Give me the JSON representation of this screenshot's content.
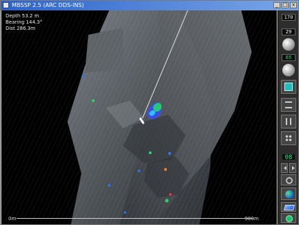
{
  "window": {
    "title": "MBSSP 2.5 (ARC DDS-INS)",
    "controls": {
      "minimize": "_",
      "maximize": "□",
      "close": "×"
    }
  },
  "readout": {
    "depth": "Depth 53.2 m",
    "bearing": "Bearing 144.3°",
    "dist": "Dist 286.3m"
  },
  "scale": {
    "left_label": "0m",
    "right_label": "900m"
  },
  "panel": {
    "top_readout": "170",
    "digit_1": "29",
    "digit_2": "65",
    "lcd": "08",
    "icons": [
      "square-button-icon",
      "lines-button-icon",
      "pause-button-icon",
      "dots-button-icon",
      "left-arrow-icon",
      "right-arrow-icon",
      "gear-icon",
      "globe-icon",
      "layers-icon",
      "ok-icon"
    ]
  },
  "colors": {
    "panel": "#2d2d2d",
    "lcd_green": "#2fe37a",
    "seafloor": "#5a5f64",
    "titlebar": "#2b63c9"
  }
}
